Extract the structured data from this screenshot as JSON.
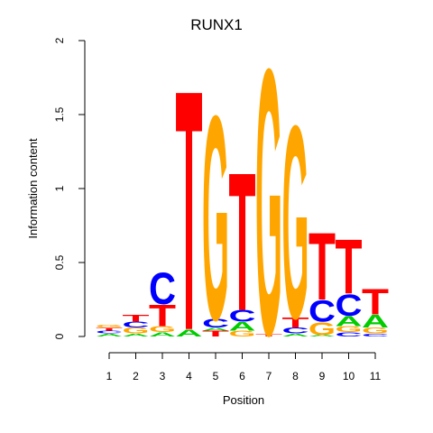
{
  "chart_data": {
    "type": "sequence-logo",
    "title": "RUNX1",
    "xlabel": "Position",
    "ylabel": "Information content",
    "ylim": [
      0,
      2
    ],
    "y_ticks": [
      "0",
      "0.5",
      "1",
      "1.5",
      "2"
    ],
    "y_tick_values": [
      0,
      0.5,
      1,
      1.5,
      2
    ],
    "x_ticks": [
      "1",
      "2",
      "3",
      "4",
      "5",
      "6",
      "7",
      "8",
      "9",
      "10",
      "11"
    ],
    "letter_colors": {
      "A": "#00cc00",
      "C": "#0000ff",
      "G": "#ffa500",
      "T": "#ff0000"
    },
    "positions": [
      {
        "position": "1",
        "stack": [
          [
            "A",
            0.02
          ],
          [
            "C",
            0.02
          ],
          [
            "T",
            0.02
          ],
          [
            "G",
            0.02
          ]
        ]
      },
      {
        "position": "2",
        "stack": [
          [
            "A",
            0.02
          ],
          [
            "G",
            0.04
          ],
          [
            "C",
            0.04
          ],
          [
            "T",
            0.05
          ]
        ]
      },
      {
        "position": "3",
        "stack": [
          [
            "A",
            0.03
          ],
          [
            "G",
            0.04
          ],
          [
            "T",
            0.15
          ],
          [
            "C",
            0.22
          ]
        ]
      },
      {
        "position": "4",
        "stack": [
          [
            "A",
            0.05
          ],
          [
            "T",
            1.67
          ]
        ]
      },
      {
        "position": "5",
        "stack": [
          [
            "T",
            0.04
          ],
          [
            "A",
            0.02
          ],
          [
            "C",
            0.06
          ],
          [
            "G",
            1.42
          ]
        ]
      },
      {
        "position": "6",
        "stack": [
          [
            "G",
            0.04
          ],
          [
            "A",
            0.06
          ],
          [
            "C",
            0.08
          ],
          [
            "T",
            0.96
          ]
        ]
      },
      {
        "position": "7",
        "stack": [
          [
            "T",
            0.02
          ],
          [
            "G",
            1.85
          ]
        ]
      },
      {
        "position": "8",
        "stack": [
          [
            "A",
            0.02
          ],
          [
            "C",
            0.04
          ],
          [
            "T",
            0.07
          ],
          [
            "G",
            1.34
          ]
        ]
      },
      {
        "position": "9",
        "stack": [
          [
            "A",
            0.01
          ],
          [
            "G",
            0.09
          ],
          [
            "C",
            0.15
          ],
          [
            "T",
            0.47
          ]
        ]
      },
      {
        "position": "10",
        "stack": [
          [
            "C",
            0.03
          ],
          [
            "G",
            0.04
          ],
          [
            "A",
            0.07
          ],
          [
            "C",
            0.15
          ],
          [
            "T",
            0.38
          ]
        ]
      },
      {
        "position": "11",
        "stack": [
          [
            "C",
            0.02
          ],
          [
            "G",
            0.04
          ],
          [
            "A",
            0.09
          ],
          [
            "T",
            0.18
          ]
        ]
      }
    ]
  }
}
